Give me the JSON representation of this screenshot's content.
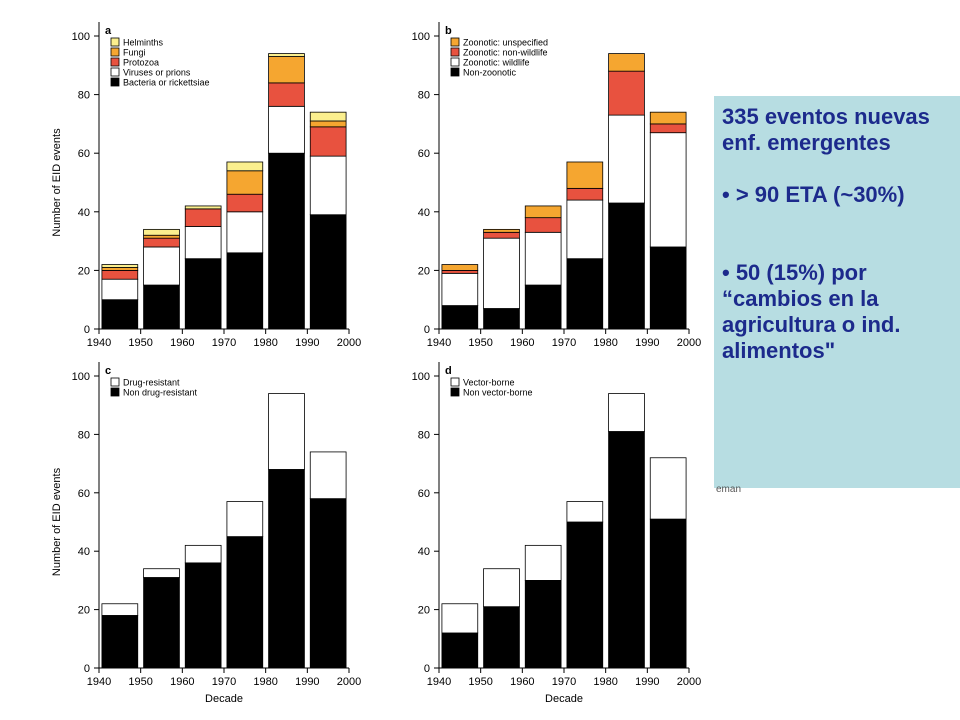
{
  "callout": {
    "line1": "335 eventos nuevas enf. emergentes",
    "line2": "• > 90 ETA (~30%)",
    "line3": "• 50 (15%) por “cambios en la agricultura o ind. alimentos\""
  },
  "stray_text": "eman",
  "chart_data": [
    {
      "type": "bar",
      "panel_label": "a",
      "ylabel": "Number of EID events",
      "xlabel": "",
      "x_ticks": [
        "1940",
        "1950",
        "1960",
        "1970",
        "1980",
        "1990",
        "2000"
      ],
      "y_ticks": [
        "0",
        "20",
        "40",
        "60",
        "80",
        "100"
      ],
      "ylim": [
        0,
        100
      ],
      "legend_position": "top-left",
      "categories": [
        "1940s",
        "1950s",
        "1960s",
        "1970s",
        "1980s",
        "1990s"
      ],
      "series": [
        {
          "name": "Bacteria or rickettsiae",
          "color": "#000000",
          "values": [
            10,
            15,
            24,
            26,
            60,
            39
          ]
        },
        {
          "name": "Viruses or prions",
          "color": "#ffffff",
          "values": [
            7,
            13,
            11,
            14,
            16,
            20
          ]
        },
        {
          "name": "Protozoa",
          "color": "#e8523f",
          "values": [
            3,
            3,
            6,
            6,
            8,
            10
          ]
        },
        {
          "name": "Fungi",
          "color": "#f5a630",
          "values": [
            1,
            1,
            0,
            8,
            9,
            2
          ]
        },
        {
          "name": "Helminths",
          "color": "#fbef8e",
          "values": [
            1,
            2,
            1,
            3,
            1,
            3
          ]
        }
      ]
    },
    {
      "type": "bar",
      "panel_label": "b",
      "ylabel": "",
      "xlabel": "",
      "x_ticks": [
        "1940",
        "1950",
        "1960",
        "1970",
        "1980",
        "1990",
        "2000"
      ],
      "y_ticks": [
        "0",
        "20",
        "40",
        "60",
        "80",
        "100"
      ],
      "ylim": [
        0,
        100
      ],
      "legend_position": "top-left",
      "categories": [
        "1940s",
        "1950s",
        "1960s",
        "1970s",
        "1980s",
        "1990s"
      ],
      "series": [
        {
          "name": "Non-zoonotic",
          "color": "#000000",
          "values": [
            8,
            7,
            15,
            24,
            43,
            28
          ]
        },
        {
          "name": "Zoonotic: wildlife",
          "color": "#ffffff",
          "values": [
            11,
            24,
            18,
            20,
            30,
            39
          ]
        },
        {
          "name": "Zoonotic: non-wildlife",
          "color": "#e8523f",
          "values": [
            1,
            2,
            5,
            4,
            15,
            3
          ]
        },
        {
          "name": "Zoonotic: unspecified",
          "color": "#f5a630",
          "values": [
            2,
            1,
            4,
            9,
            6,
            4
          ]
        }
      ]
    },
    {
      "type": "bar",
      "panel_label": "c",
      "ylabel": "Number of EID events",
      "xlabel": "Decade",
      "x_ticks": [
        "1940",
        "1950",
        "1960",
        "1970",
        "1980",
        "1990",
        "2000"
      ],
      "y_ticks": [
        "0",
        "20",
        "40",
        "60",
        "80",
        "100"
      ],
      "ylim": [
        0,
        100
      ],
      "legend_position": "top-left",
      "categories": [
        "1940s",
        "1950s",
        "1960s",
        "1970s",
        "1980s",
        "1990s"
      ],
      "series": [
        {
          "name": "Non drug-resistant",
          "color": "#000000",
          "values": [
            18,
            31,
            36,
            45,
            68,
            58
          ]
        },
        {
          "name": "Drug-resistant",
          "color": "#ffffff",
          "values": [
            4,
            3,
            6,
            12,
            26,
            16
          ]
        }
      ]
    },
    {
      "type": "bar",
      "panel_label": "d",
      "ylabel": "",
      "xlabel": "Decade",
      "x_ticks": [
        "1940",
        "1950",
        "1960",
        "1970",
        "1980",
        "1990",
        "2000"
      ],
      "y_ticks": [
        "0",
        "20",
        "40",
        "60",
        "80",
        "100"
      ],
      "ylim": [
        0,
        100
      ],
      "legend_position": "top-left",
      "categories": [
        "1940s",
        "1950s",
        "1960s",
        "1970s",
        "1980s",
        "1990s"
      ],
      "series": [
        {
          "name": "Non vector-borne",
          "color": "#000000",
          "values": [
            12,
            21,
            30,
            50,
            81,
            51
          ]
        },
        {
          "name": "Vector-borne",
          "color": "#ffffff",
          "values": [
            10,
            13,
            12,
            7,
            13,
            21
          ]
        }
      ]
    }
  ]
}
